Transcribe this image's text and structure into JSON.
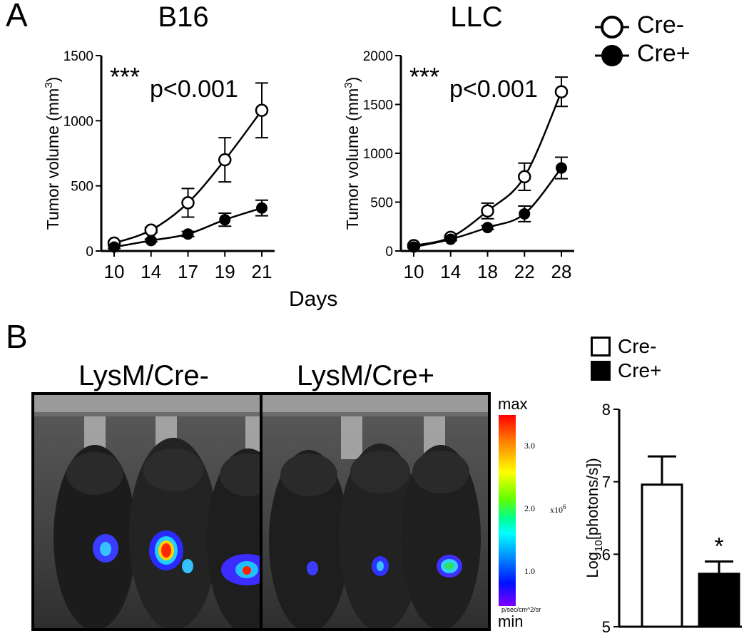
{
  "panel_a": {
    "letter": "A",
    "shared_xlabel": "Days"
  },
  "panel_b": {
    "letter": "B",
    "photo_labels": [
      "LysM/Cre-",
      "LysM/Cre+"
    ],
    "colorbar": {
      "max_label": "max",
      "min_label": "min",
      "ticks": [
        "3.0",
        "2.0",
        "1.0"
      ],
      "multiplier": "x10",
      "exponent": "6",
      "unit": "p/sec/cm^2/sr"
    }
  },
  "legend_a": {
    "items": [
      "Cre-",
      "Cre+"
    ]
  },
  "legend_b": {
    "items": [
      "Cre-",
      "Cre+"
    ]
  },
  "colors": {
    "open_marker": "#ffffff",
    "filled_marker": "#000000",
    "stroke": "#000000"
  },
  "chart_data": [
    {
      "type": "line",
      "title": "B16",
      "annotation_stars": "***",
      "annotation_p": "p<0.001",
      "xlabel": "",
      "ylabel": "Tumor volume (mm",
      "ylabel_sup": "3",
      "ylabel_close": ")",
      "categories": [
        "10",
        "14",
        "17",
        "19",
        "21"
      ],
      "ylim": [
        0,
        1500
      ],
      "yticks": [
        0,
        500,
        1000,
        1500
      ],
      "series": [
        {
          "name": "Cre-",
          "values": [
            60,
            160,
            370,
            700,
            1080
          ],
          "errors": [
            15,
            20,
            110,
            170,
            210
          ]
        },
        {
          "name": "Cre+",
          "values": [
            30,
            80,
            130,
            240,
            330
          ],
          "errors": [
            10,
            10,
            20,
            50,
            60
          ]
        }
      ]
    },
    {
      "type": "line",
      "title": "LLC",
      "annotation_stars": "***",
      "annotation_p": "p<0.001",
      "xlabel": "",
      "ylabel": "Tumor volume (mm",
      "ylabel_sup": "3",
      "ylabel_close": ")",
      "categories": [
        "10",
        "14",
        "18",
        "22",
        "28"
      ],
      "ylim": [
        0,
        2000
      ],
      "yticks": [
        0,
        500,
        1000,
        1500,
        2000
      ],
      "series": [
        {
          "name": "Cre-",
          "values": [
            55,
            140,
            410,
            760,
            1630
          ],
          "errors": [
            10,
            15,
            80,
            140,
            150
          ]
        },
        {
          "name": "Cre+",
          "values": [
            40,
            120,
            240,
            380,
            850
          ],
          "errors": [
            8,
            15,
            20,
            80,
            110
          ]
        }
      ]
    },
    {
      "type": "bar",
      "title": "",
      "xlabel": "",
      "ylabel": "Log",
      "ylabel_sub": "10",
      "ylabel_rest": "[photons/s])",
      "categories": [
        "Cre-",
        "Cre+"
      ],
      "values": [
        6.96,
        5.73
      ],
      "errors": [
        0.39,
        0.17
      ],
      "ylim": [
        5,
        8
      ],
      "yticks": [
        5,
        6,
        7,
        8
      ],
      "significance": [
        "",
        "*"
      ]
    }
  ]
}
